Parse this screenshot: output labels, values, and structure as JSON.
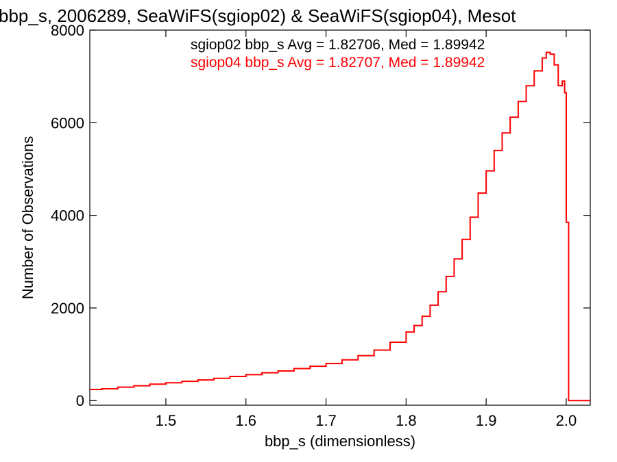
{
  "chart_data": {
    "type": "histogram",
    "title": "bbp_s, 2006289, SeaWiFS(sgiop02) & SeaWiFS(sgiop04), Mesot",
    "xlabel": "bbp_s (dimensionless)",
    "ylabel": "Number of Observations",
    "xlim": [
      1.405,
      2.03
    ],
    "ylim": [
      -100,
      8000
    ],
    "xticks": [
      1.5,
      1.6,
      1.7,
      1.8,
      1.9,
      2.0
    ],
    "xtick_labels": [
      "1.5",
      "1.6",
      "1.7",
      "1.8",
      "1.9",
      "2.0"
    ],
    "yticks": [
      0,
      2000,
      4000,
      6000,
      8000
    ],
    "ytick_labels": [
      "0",
      "2000",
      "4000",
      "6000",
      "8000"
    ],
    "grid": false,
    "annotations": [
      {
        "text": "sgiop02 bbp_s Avg = 1.82706, Med = 1.89942",
        "color": "#000000"
      },
      {
        "text": "sgiop04 bbp_s Avg = 1.82707, Med = 1.89942",
        "color": "#ff0000"
      }
    ],
    "series": [
      {
        "color": "#ff0000",
        "points": [
          [
            1.405,
            240
          ],
          [
            1.42,
            255
          ],
          [
            1.44,
            290
          ],
          [
            1.46,
            320
          ],
          [
            1.48,
            355
          ],
          [
            1.5,
            385
          ],
          [
            1.52,
            415
          ],
          [
            1.54,
            445
          ],
          [
            1.56,
            480
          ],
          [
            1.58,
            520
          ],
          [
            1.6,
            560
          ],
          [
            1.62,
            600
          ],
          [
            1.64,
            640
          ],
          [
            1.66,
            690
          ],
          [
            1.68,
            740
          ],
          [
            1.7,
            800
          ],
          [
            1.72,
            880
          ],
          [
            1.74,
            970
          ],
          [
            1.76,
            1090
          ],
          [
            1.78,
            1260
          ],
          [
            1.8,
            1480
          ],
          [
            1.81,
            1620
          ],
          [
            1.82,
            1820
          ],
          [
            1.83,
            2060
          ],
          [
            1.84,
            2350
          ],
          [
            1.85,
            2680
          ],
          [
            1.86,
            3060
          ],
          [
            1.87,
            3480
          ],
          [
            1.88,
            3960
          ],
          [
            1.89,
            4480
          ],
          [
            1.9,
            4960
          ],
          [
            1.91,
            5400
          ],
          [
            1.92,
            5780
          ],
          [
            1.93,
            6120
          ],
          [
            1.94,
            6460
          ],
          [
            1.95,
            6800
          ],
          [
            1.96,
            7120
          ],
          [
            1.97,
            7400
          ],
          [
            1.975,
            7520
          ],
          [
            1.98,
            7480
          ],
          [
            1.985,
            7250
          ],
          [
            1.99,
            6800
          ],
          [
            1.995,
            6900
          ],
          [
            1.998,
            6650
          ],
          [
            2.0,
            3850
          ],
          [
            2.003,
            0
          ],
          [
            2.03,
            0
          ]
        ]
      }
    ]
  }
}
